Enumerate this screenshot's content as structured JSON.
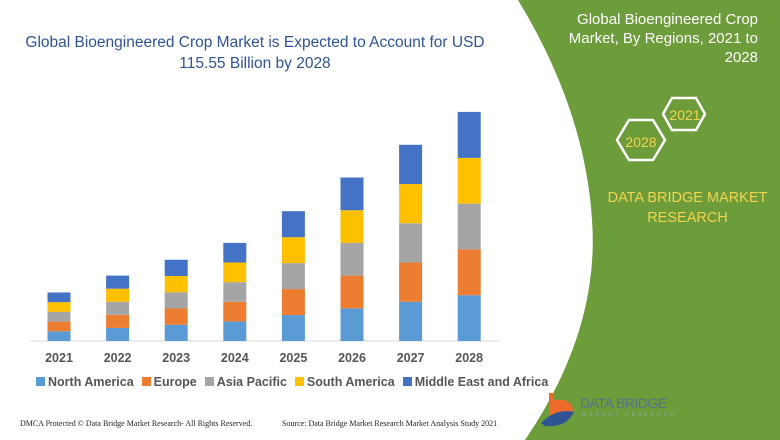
{
  "title": "Global Bioengineered Crop Market is Expected to Account for USD 115.55 Billion by 2028",
  "side_panel": {
    "title": "Global Bioengineered Crop Market, By Regions, 2021 to 2028",
    "hex_start": "2021",
    "hex_end": "2028",
    "brand": "DATA BRIDGE MARKET RESEARCH",
    "logo_text": "DATA BRIDGE",
    "logo_sub": "MARKET RESEARCH",
    "color": "#6d9c3a"
  },
  "footer": {
    "dmca": "DMCA Protected © Data Bridge Market Research- All Rights Reserved.",
    "source": "Source: Data Bridge Market Research Market Analysis Study 2021"
  },
  "chart_data": {
    "type": "bar",
    "stacked": true,
    "title": "Global Bioengineered Crop Market is Expected to Account for USD 115.55 Billion by 2028",
    "xlabel": "",
    "ylabel": "",
    "ylim": [
      0,
      120
    ],
    "grid": false,
    "legend_position": "bottom",
    "categories": [
      "2021",
      "2022",
      "2023",
      "2024",
      "2025",
      "2026",
      "2027",
      "2028"
    ],
    "series": [
      {
        "name": "North America",
        "color": "#5b9bd5",
        "values": [
          4.9,
          6.6,
          8.2,
          9.9,
          13.1,
          16.5,
          19.8,
          23.1
        ]
      },
      {
        "name": "Europe",
        "color": "#ed7d31",
        "values": [
          4.9,
          6.6,
          8.2,
          9.9,
          13.1,
          16.5,
          19.8,
          23.1
        ]
      },
      {
        "name": "Asia Pacific",
        "color": "#a5a5a5",
        "values": [
          4.9,
          6.6,
          8.2,
          9.9,
          13.1,
          16.5,
          19.8,
          23.1
        ]
      },
      {
        "name": "South America",
        "color": "#ffc000",
        "values": [
          4.9,
          6.6,
          8.2,
          9.9,
          13.1,
          16.5,
          19.8,
          23.1
        ]
      },
      {
        "name": "Middle East and Africa",
        "color": "#4472c4",
        "values": [
          4.9,
          6.6,
          8.2,
          9.9,
          13.1,
          16.5,
          19.8,
          23.2
        ]
      }
    ]
  }
}
